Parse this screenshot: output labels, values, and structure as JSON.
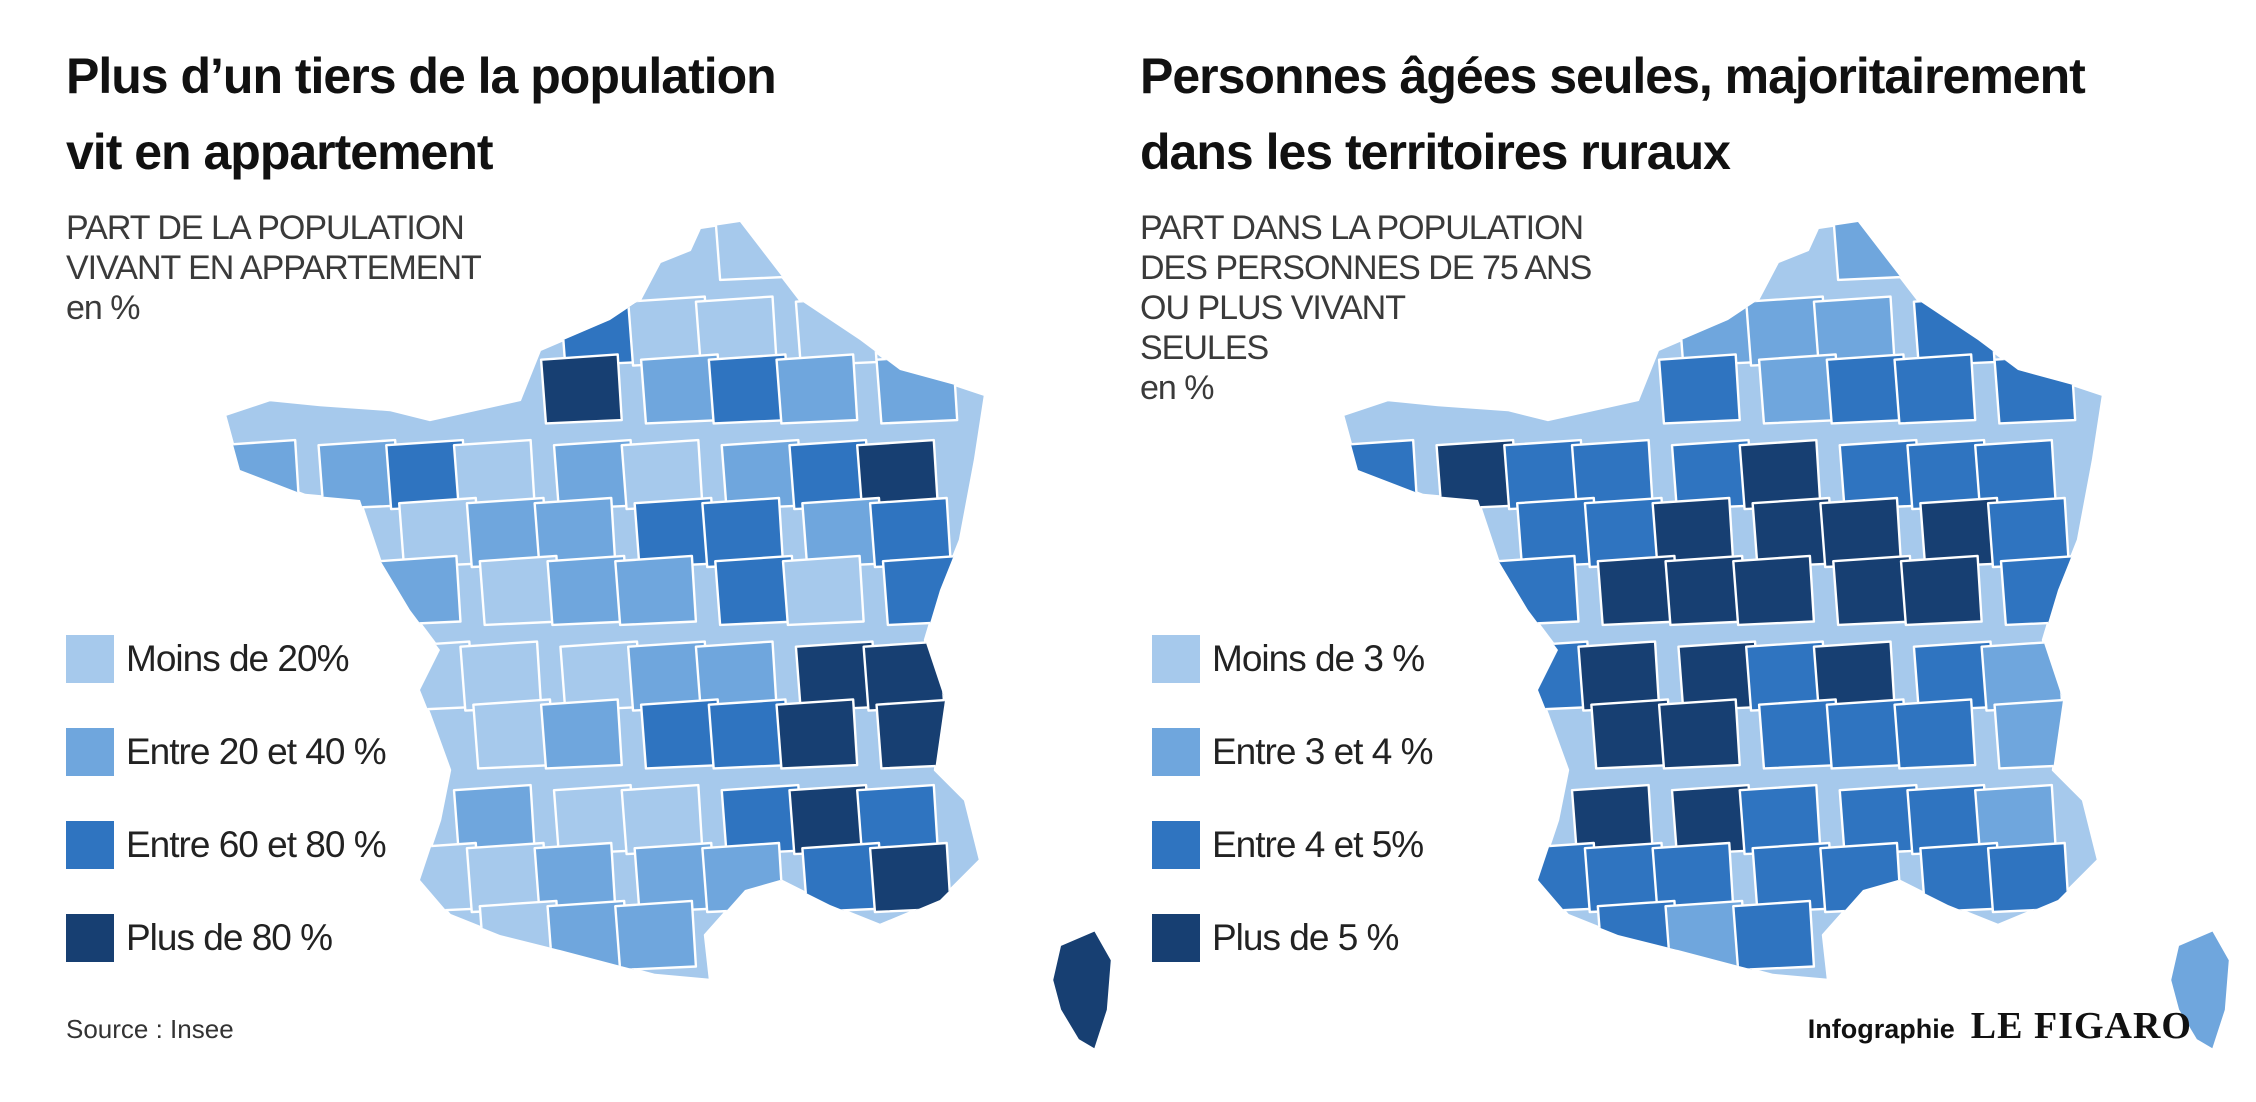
{
  "palette": [
    "#a6c9ec",
    "#6fa6dd",
    "#2f74c0",
    "#173f72"
  ],
  "left": {
    "title_lines": [
      "Plus d’un tiers de la population",
      "vit en appartement"
    ],
    "subtitle_lines": [
      "PART DE LA POPULATION",
      "VIVANT EN APPARTEMENT"
    ],
    "unit": "en %",
    "legend": [
      {
        "label": "Moins de 20%",
        "color": "#a6c9ec"
      },
      {
        "label": "Entre 20 et 40 %",
        "color": "#6fa6dd"
      },
      {
        "label": "Entre 60 et 80 %",
        "color": "#2f74c0"
      },
      {
        "label": "Plus de 80 %",
        "color": "#173f72"
      }
    ],
    "source": "Source : Insee"
  },
  "right": {
    "title_lines": [
      "Personnes âgées seules, majoritairement",
      "dans les territoires ruraux"
    ],
    "subtitle_lines": [
      "PART DANS LA POPULATION",
      "DES PERSONNES DE 75 ANS",
      "OU PLUS VIVANT",
      "SEULES"
    ],
    "unit": "en %",
    "legend": [
      {
        "label": "Moins de 3 %",
        "color": "#a6c9ec"
      },
      {
        "label": "Entre 3 et 4 %",
        "color": "#6fa6dd"
      },
      {
        "label": "Entre 4 et 5%",
        "color": "#2f74c0"
      },
      {
        "label": "Plus de 5 %",
        "color": "#173f72"
      }
    ]
  },
  "credit": {
    "label": "Infographie",
    "brand": "LE FIGARO"
  }
}
